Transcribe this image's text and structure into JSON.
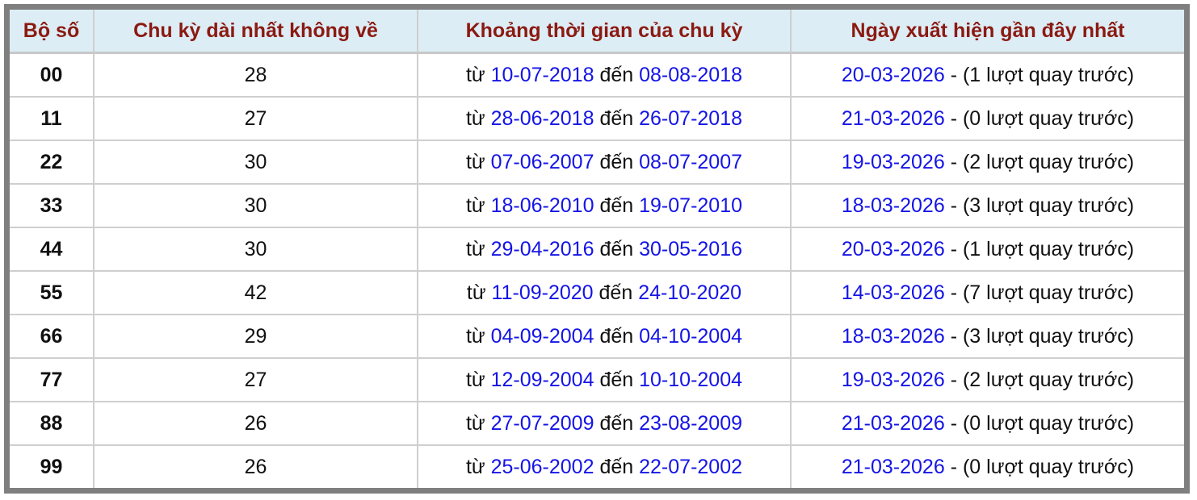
{
  "headers": [
    "Bộ số",
    "Chu kỳ dài nhất không về",
    "Khoảng thời gian của chu kỳ",
    "Ngày xuất hiện gần đây nhất"
  ],
  "labels": {
    "from": "từ",
    "to": "đến",
    "dash": "-"
  },
  "colors": {
    "header_text": "#8b1a12",
    "header_bg": "#ddedf5",
    "link": "#1414e6",
    "frame": "#7f7f7f"
  },
  "rows": [
    {
      "number": "00",
      "cycle": "28",
      "start": "10-07-2018",
      "end": "08-08-2018",
      "last": "20-03-2026",
      "note": "(1 lượt quay trước)"
    },
    {
      "number": "11",
      "cycle": "27",
      "start": "28-06-2018",
      "end": "26-07-2018",
      "last": "21-03-2026",
      "note": "(0 lượt quay trước)"
    },
    {
      "number": "22",
      "cycle": "30",
      "start": "07-06-2007",
      "end": "08-07-2007",
      "last": "19-03-2026",
      "note": "(2 lượt quay trước)"
    },
    {
      "number": "33",
      "cycle": "30",
      "start": "18-06-2010",
      "end": "19-07-2010",
      "last": "18-03-2026",
      "note": "(3 lượt quay trước)"
    },
    {
      "number": "44",
      "cycle": "30",
      "start": "29-04-2016",
      "end": "30-05-2016",
      "last": "20-03-2026",
      "note": "(1 lượt quay trước)"
    },
    {
      "number": "55",
      "cycle": "42",
      "start": "11-09-2020",
      "end": "24-10-2020",
      "last": "14-03-2026",
      "note": "(7 lượt quay trước)"
    },
    {
      "number": "66",
      "cycle": "29",
      "start": "04-09-2004",
      "end": "04-10-2004",
      "last": "18-03-2026",
      "note": "(3 lượt quay trước)"
    },
    {
      "number": "77",
      "cycle": "27",
      "start": "12-09-2004",
      "end": "10-10-2004",
      "last": "19-03-2026",
      "note": "(2 lượt quay trước)"
    },
    {
      "number": "88",
      "cycle": "26",
      "start": "27-07-2009",
      "end": "23-08-2009",
      "last": "21-03-2026",
      "note": "(0 lượt quay trước)"
    },
    {
      "number": "99",
      "cycle": "26",
      "start": "25-06-2002",
      "end": "22-07-2002",
      "last": "21-03-2026",
      "note": "(0 lượt quay trước)"
    }
  ]
}
